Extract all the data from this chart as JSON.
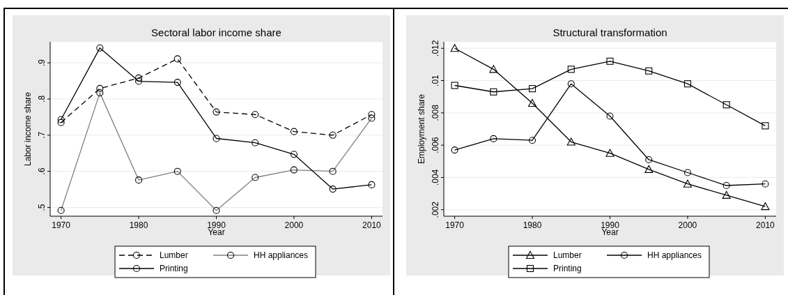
{
  "chart_data": [
    {
      "type": "line",
      "title": "Sectoral labor income share",
      "xlabel": "Year",
      "ylabel": "Labor income share",
      "x": [
        1970,
        1975,
        1980,
        1985,
        1990,
        1995,
        2000,
        2005,
        2010
      ],
      "xlim": [
        1968.6,
        2011.4
      ],
      "xticks": [
        1970,
        1980,
        1990,
        2000,
        2010
      ],
      "ylim": [
        0.476,
        0.958
      ],
      "yticks": [
        {
          "value": 0.5,
          "label": ".5"
        },
        {
          "value": 0.6,
          "label": ".6"
        },
        {
          "value": 0.7,
          "label": ".7"
        },
        {
          "value": 0.8,
          "label": ".8"
        },
        {
          "value": 0.9,
          "label": ".9"
        }
      ],
      "grid": "y",
      "legend": "bottom",
      "series": [
        {
          "name": "Lumber",
          "color": "#000000",
          "marker": "circle",
          "line_style": "dashed",
          "values": [
            0.735,
            0.829,
            0.858,
            0.911,
            0.764,
            0.757,
            0.71,
            0.7,
            0.757
          ]
        },
        {
          "name": "HH appliances",
          "color": "#808080",
          "marker": "circle",
          "line_style": "solid",
          "values": [
            0.492,
            0.817,
            0.576,
            0.6,
            0.492,
            0.583,
            0.604,
            0.6,
            0.747
          ]
        },
        {
          "name": "Printing",
          "color": "#000000",
          "marker": "circle",
          "line_style": "solid",
          "values": [
            0.743,
            0.941,
            0.849,
            0.846,
            0.691,
            0.679,
            0.647,
            0.551,
            0.563
          ]
        }
      ]
    },
    {
      "type": "line",
      "title": "Structural transformation",
      "xlabel": "Year",
      "ylabel": "Employment share",
      "x": [
        1970,
        1975,
        1980,
        1985,
        1990,
        1995,
        2000,
        2005,
        2010
      ],
      "xlim": [
        1968.6,
        2011.4
      ],
      "xticks": [
        1970,
        1980,
        1990,
        2000,
        2010
      ],
      "ylim": [
        0.0016,
        0.0124
      ],
      "yticks": [
        {
          "value": 0.002,
          "label": ".002"
        },
        {
          "value": 0.004,
          "label": ".004"
        },
        {
          "value": 0.006,
          "label": ".006"
        },
        {
          "value": 0.008,
          "label": ".008"
        },
        {
          "value": 0.01,
          "label": ".01"
        },
        {
          "value": 0.012,
          "label": ".012"
        }
      ],
      "grid": "y",
      "legend": "bottom",
      "series": [
        {
          "name": "Lumber",
          "color": "#000000",
          "marker": "triangle",
          "line_style": "solid",
          "values": [
            0.012,
            0.0107,
            0.0086,
            0.0062,
            0.0055,
            0.0045,
            0.0036,
            0.0029,
            0.0022
          ]
        },
        {
          "name": "HH appliances",
          "color": "#000000",
          "marker": "circle",
          "line_style": "solid",
          "values": [
            0.0057,
            0.0064,
            0.0063,
            0.0098,
            0.0078,
            0.0051,
            0.0043,
            0.0035,
            0.0036
          ]
        },
        {
          "name": "Printing",
          "color": "#000000",
          "marker": "square",
          "line_style": "solid",
          "values": [
            0.0097,
            0.0093,
            0.0095,
            0.0107,
            0.0112,
            0.0106,
            0.0098,
            0.0085,
            0.0072
          ]
        }
      ]
    }
  ]
}
